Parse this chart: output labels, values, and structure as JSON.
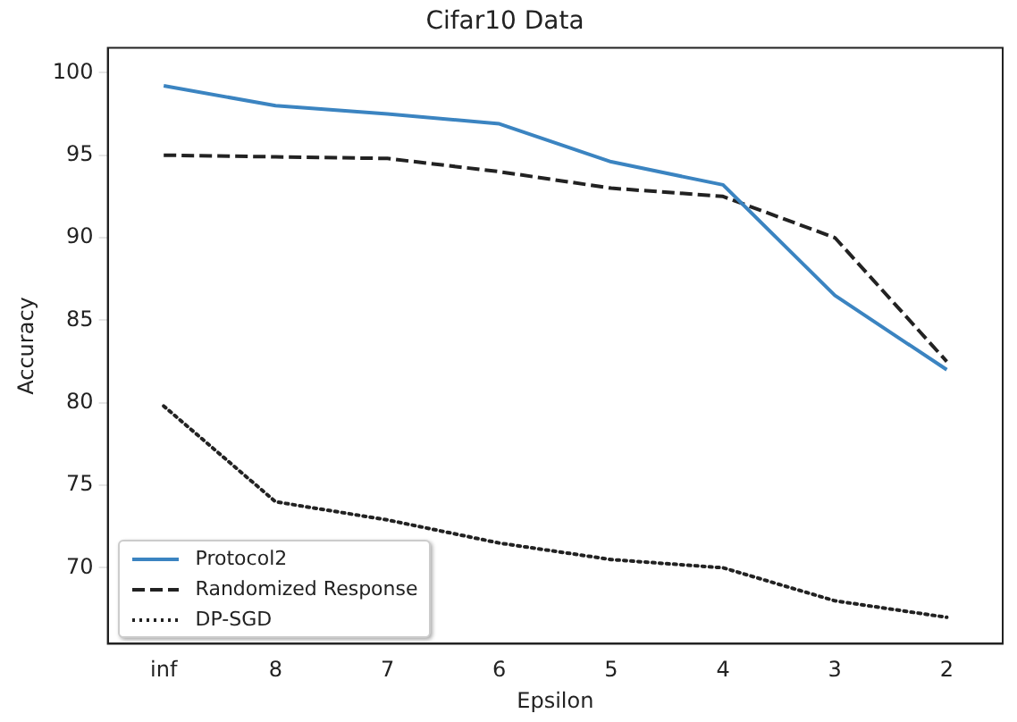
{
  "chart_data": {
    "type": "line",
    "title": "Cifar10 Data",
    "xlabel": "Epsilon",
    "ylabel": "Accuracy",
    "categories": [
      "inf",
      "8",
      "7",
      "6",
      "5",
      "4",
      "3",
      "2"
    ],
    "series": [
      {
        "name": "Protocol2",
        "color": "#3b84c1",
        "line_style": "solid",
        "values": [
          99.2,
          98.0,
          97.5,
          96.9,
          94.6,
          93.2,
          86.5,
          82.0
        ]
      },
      {
        "name": "Randomized Response",
        "color": "#222222",
        "line_style": "dashed",
        "values": [
          95.0,
          94.9,
          94.8,
          94.0,
          93.0,
          92.5,
          90.0,
          82.5
        ]
      },
      {
        "name": "DP-SGD",
        "color": "#222222",
        "line_style": "dotted",
        "values": [
          79.8,
          74.0,
          72.9,
          71.5,
          70.5,
          70.0,
          68.0,
          67.0
        ]
      }
    ],
    "ylim": [
      65.4,
      101.5
    ],
    "yticks": [
      70,
      75,
      80,
      85,
      90,
      95,
      100
    ],
    "grid": false,
    "legend": "bottom left",
    "marker": "none"
  }
}
